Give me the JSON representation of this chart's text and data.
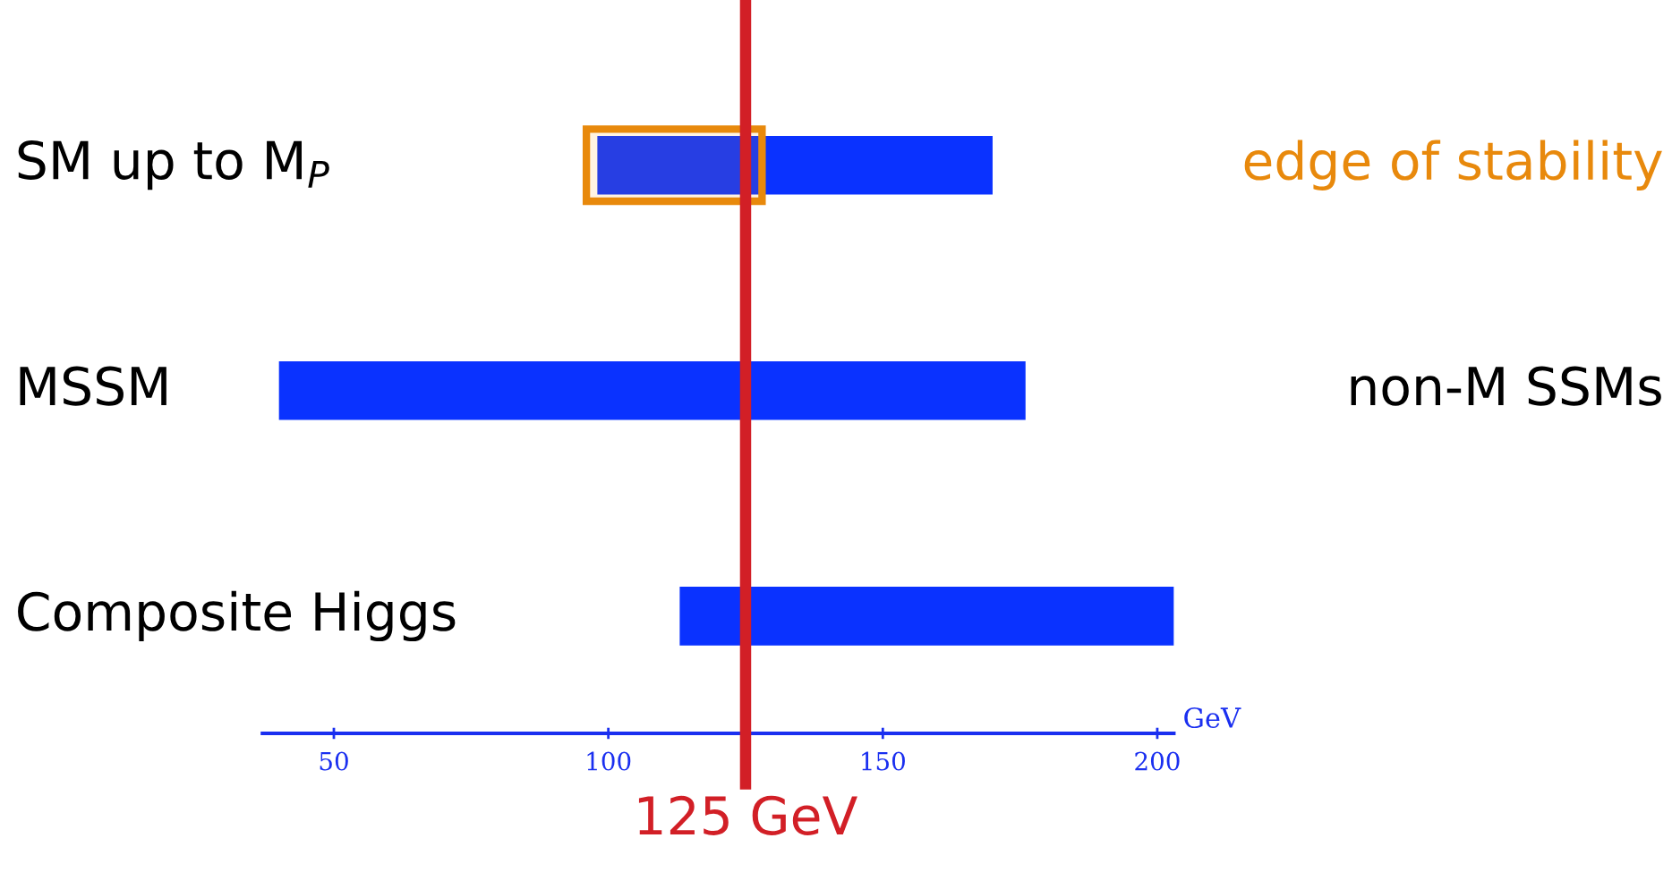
{
  "chart_data": {
    "type": "bar",
    "orientation": "horizontal",
    "categories": [
      "SM up to M$_{P}$",
      "MSSM",
      "Composite Higgs"
    ],
    "base": [
      98,
      40,
      113
    ],
    "values": [
      72,
      136,
      92
    ],
    "color": "#0a32ff",
    "xlabel": "GeV",
    "xlim": [
      37,
      203
    ],
    "xticks": [
      50,
      100,
      150,
      200
    ],
    "ref_lines": [
      {
        "axis": "x",
        "value": 125,
        "label": "125 GeV",
        "color": "#d21f26"
      }
    ],
    "bands": [
      {
        "axis": "x",
        "from": 96,
        "to": 128,
        "label": "edge of stability",
        "color": "#e8890c"
      }
    ],
    "annotations": [
      "non-M SSMs"
    ],
    "grid": false,
    "legend": false
  }
}
